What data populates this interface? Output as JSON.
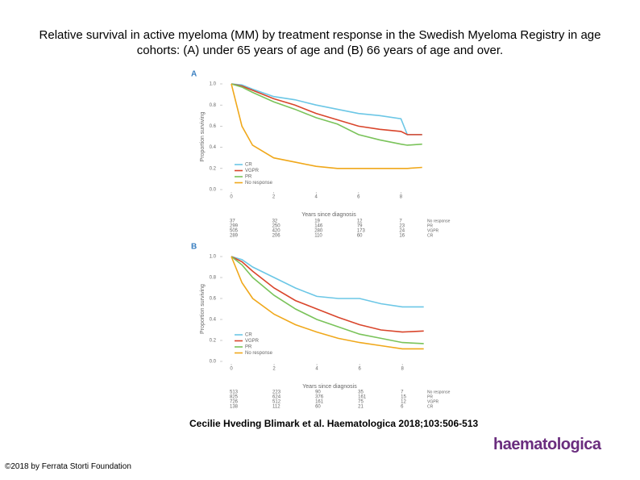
{
  "title": "Relative survival in active myeloma (MM) by treatment response in the Swedish Myeloma Registry in age cohorts: (A) under 65 years of age and (B) 66 years of age and over.",
  "citation": "Cecilie Hveding Blimark et al. Haematologica 2018;103:506-513",
  "footer": "©2018 by Ferrata Storti Foundation",
  "logo": "haematologica",
  "chart_data": [
    {
      "type": "line",
      "panel": "A",
      "ylabel": "Proportion surviving",
      "xlabel": "Years since diagnosis",
      "x": [
        0,
        0.5,
        1,
        2,
        3,
        4,
        5,
        6,
        7,
        8,
        8.3,
        9
      ],
      "xlim": [
        0,
        9.2
      ],
      "xticks": [
        0,
        2,
        4,
        6,
        8
      ],
      "ylim": [
        0,
        1
      ],
      "yticks": [
        {
          "value": 0,
          "label": "0.0"
        },
        0.2,
        0.4,
        0.6,
        0.8,
        {
          "value": 1,
          "label": "1.0"
        }
      ],
      "series": [
        {
          "name": "CR",
          "color": "#6cc7e6",
          "values": [
            1,
            0.99,
            0.95,
            0.88,
            0.85,
            0.8,
            0.76,
            0.72,
            0.7,
            0.67,
            0.52,
            0.52
          ]
        },
        {
          "name": "VGPR",
          "color": "#d9452b",
          "values": [
            1,
            0.98,
            0.94,
            0.86,
            0.8,
            0.72,
            0.66,
            0.6,
            0.57,
            0.55,
            0.52,
            0.52
          ]
        },
        {
          "name": "PR",
          "color": "#7ac35a",
          "values": [
            1,
            0.97,
            0.92,
            0.83,
            0.76,
            0.68,
            0.62,
            0.52,
            0.47,
            0.43,
            0.42,
            0.43
          ]
        },
        {
          "name": "No response",
          "color": "#f0a81b",
          "values": [
            1,
            0.6,
            0.42,
            0.3,
            0.26,
            0.22,
            0.2,
            0.2,
            0.2,
            0.2,
            0.2,
            0.21
          ]
        }
      ],
      "risk_table": [
        {
          "label": "No response",
          "counts": [
            37,
            32,
            19,
            12,
            7
          ]
        },
        {
          "label": "PR",
          "counts": [
            299,
            250,
            146,
            79,
            23
          ]
        },
        {
          "label": "VGPR",
          "counts": [
            505,
            420,
            280,
            173,
            24
          ]
        },
        {
          "label": "CR",
          "counts": [
            289,
            206,
            110,
            60,
            16
          ]
        }
      ]
    },
    {
      "type": "line",
      "panel": "B",
      "ylabel": "Proportion surviving",
      "xlabel": "Years since diagnosis",
      "x": [
        0,
        0.5,
        1,
        2,
        3,
        4,
        5,
        6,
        7,
        8,
        9
      ],
      "xlim": [
        0,
        9.2
      ],
      "xticks": [
        0,
        2,
        4,
        6,
        8
      ],
      "ylim": [
        0,
        1
      ],
      "yticks": [
        {
          "value": 0,
          "label": "0.0"
        },
        0.2,
        0.4,
        0.6,
        0.8,
        {
          "value": 1,
          "label": "1.0"
        }
      ],
      "series": [
        {
          "name": "CR",
          "color": "#6cc7e6",
          "values": [
            1,
            0.97,
            0.9,
            0.8,
            0.7,
            0.62,
            0.6,
            0.6,
            0.55,
            0.52,
            0.52
          ]
        },
        {
          "name": "VGPR",
          "color": "#d9452b",
          "values": [
            1,
            0.95,
            0.86,
            0.7,
            0.58,
            0.5,
            0.42,
            0.35,
            0.3,
            0.28,
            0.29
          ]
        },
        {
          "name": "PR",
          "color": "#7ac35a",
          "values": [
            1,
            0.92,
            0.8,
            0.63,
            0.5,
            0.4,
            0.33,
            0.26,
            0.22,
            0.18,
            0.17
          ]
        },
        {
          "name": "No response",
          "color": "#f0a81b",
          "values": [
            1,
            0.75,
            0.6,
            0.45,
            0.35,
            0.28,
            0.22,
            0.18,
            0.15,
            0.12,
            0.12
          ]
        }
      ],
      "risk_table": [
        {
          "label": "No response",
          "counts": [
            513,
            223,
            90,
            35,
            7
          ]
        },
        {
          "label": "PR",
          "counts": [
            825,
            624,
            376,
            161,
            15
          ]
        },
        {
          "label": "VGPR",
          "counts": [
            726,
            512,
            161,
            75,
            12
          ]
        },
        {
          "label": "CR",
          "counts": [
            138,
            112,
            60,
            21,
            6
          ]
        }
      ]
    }
  ]
}
